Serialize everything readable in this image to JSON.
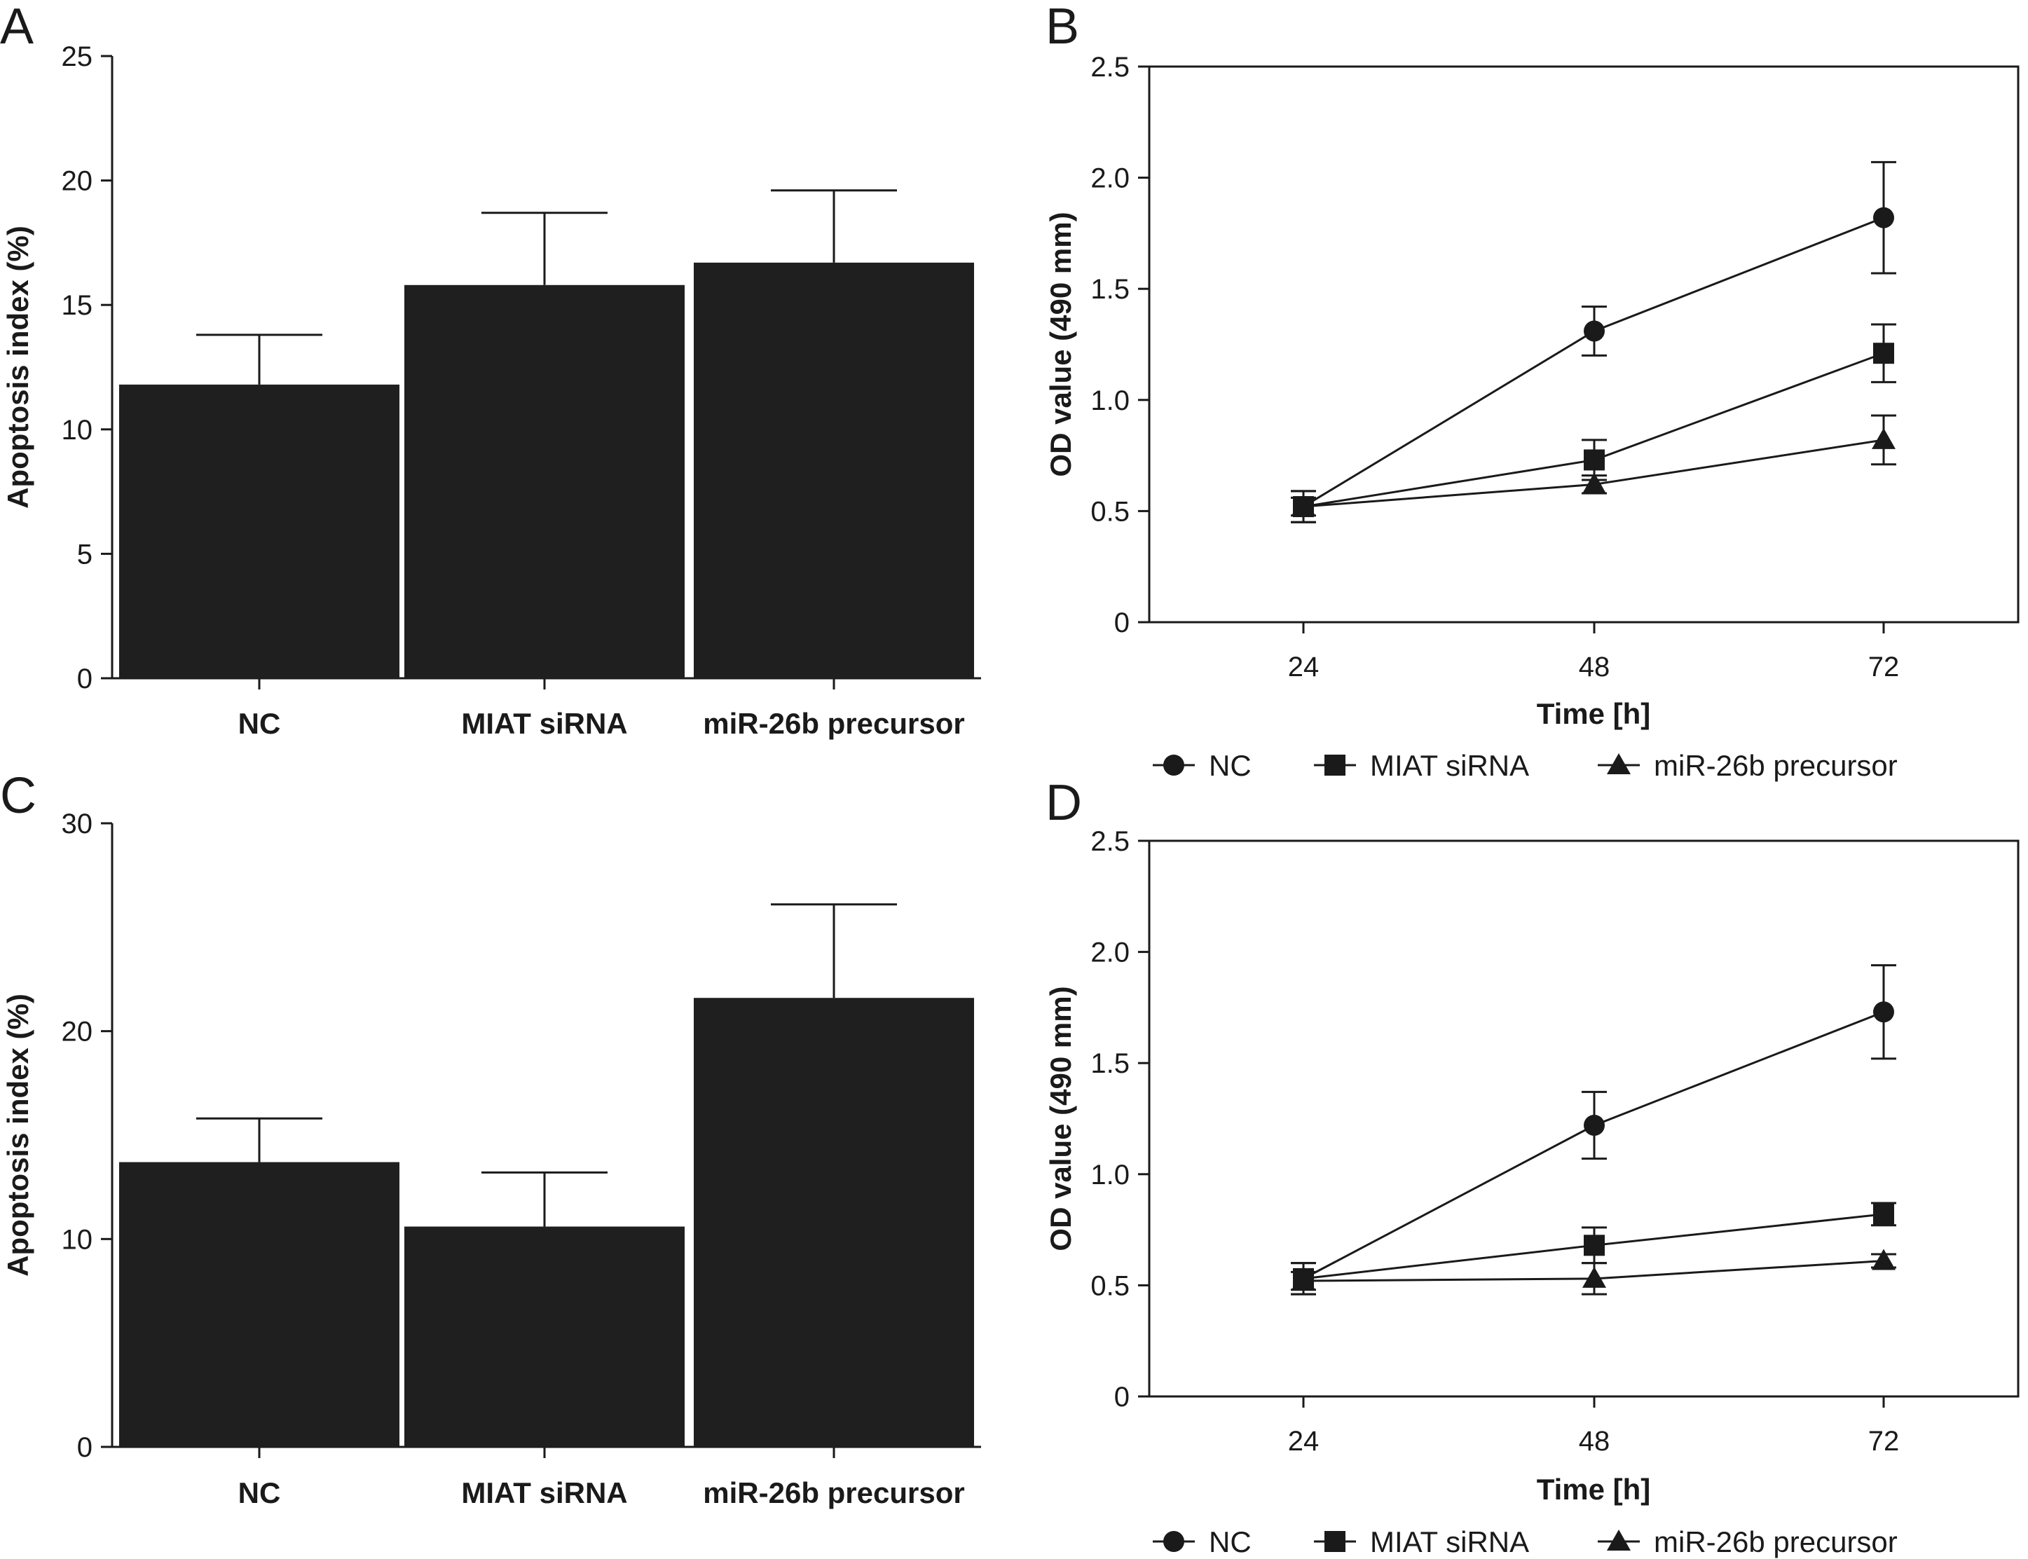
{
  "colors": {
    "ink": "#1a1a1a",
    "bar": "#1f1f1f",
    "background": "#ffffff"
  },
  "chart_data": [
    {
      "panel": "A",
      "type": "bar",
      "categories": [
        "NC",
        "MIAT siRNA",
        "miR-26b precursor"
      ],
      "values": [
        11.8,
        15.8,
        16.7
      ],
      "errors": [
        2.0,
        2.9,
        2.9
      ],
      "ylabel": "Apoptosis index (%)",
      "xlabel": "",
      "ylim": [
        0,
        25
      ],
      "yticks": [
        "0",
        "5",
        "10",
        "15",
        "20",
        "25"
      ],
      "grid": false
    },
    {
      "panel": "B",
      "type": "line",
      "x": [
        "24",
        "48",
        "72"
      ],
      "series": [
        {
          "name": "NC",
          "marker": "circle",
          "values": [
            0.52,
            1.31,
            1.82
          ],
          "errors": [
            0.07,
            0.11,
            0.25
          ]
        },
        {
          "name": "MIAT siRNA",
          "marker": "square",
          "values": [
            0.52,
            0.73,
            1.21
          ],
          "errors": [
            0.07,
            0.09,
            0.13
          ]
        },
        {
          "name": "miR-26b precursor",
          "marker": "triangle",
          "values": [
            0.52,
            0.62,
            0.82
          ],
          "errors": [
            0.04,
            0.04,
            0.11
          ]
        }
      ],
      "xlabel": "Time [h]",
      "ylabel": "OD value (490 mm)",
      "ylim": [
        0,
        2.5
      ],
      "yticks": [
        "0",
        "0.5",
        "1.0",
        "1.5",
        "2.0",
        "2.5"
      ],
      "legend": "bottom",
      "grid": false
    },
    {
      "panel": "C",
      "type": "bar",
      "categories": [
        "NC",
        "MIAT siRNA",
        "miR-26b precursor"
      ],
      "values": [
        13.7,
        10.6,
        21.6
      ],
      "errors": [
        2.1,
        2.6,
        4.5
      ],
      "ylabel": "Apoptosis index (%)",
      "xlabel": "",
      "ylim": [
        0,
        30
      ],
      "yticks": [
        "0",
        "10",
        "20",
        "30"
      ],
      "grid": false
    },
    {
      "panel": "D",
      "type": "line",
      "x": [
        "24",
        "48",
        "72"
      ],
      "series": [
        {
          "name": "NC",
          "marker": "circle",
          "values": [
            0.53,
            1.22,
            1.73
          ],
          "errors": [
            0.07,
            0.15,
            0.21
          ]
        },
        {
          "name": "MIAT siRNA",
          "marker": "square",
          "values": [
            0.53,
            0.68,
            0.82
          ],
          "errors": [
            0.07,
            0.08,
            0.05
          ]
        },
        {
          "name": "miR-26b precursor",
          "marker": "triangle",
          "values": [
            0.52,
            0.53,
            0.61
          ],
          "errors": [
            0.04,
            0.07,
            0.03
          ]
        }
      ],
      "xlabel": "Time [h]",
      "ylabel": "OD value (490 mm)",
      "ylim": [
        0,
        2.5
      ],
      "yticks": [
        "0",
        "0.5",
        "1.0",
        "1.5",
        "2.0",
        "2.5"
      ],
      "legend": "bottom",
      "grid": false
    }
  ]
}
